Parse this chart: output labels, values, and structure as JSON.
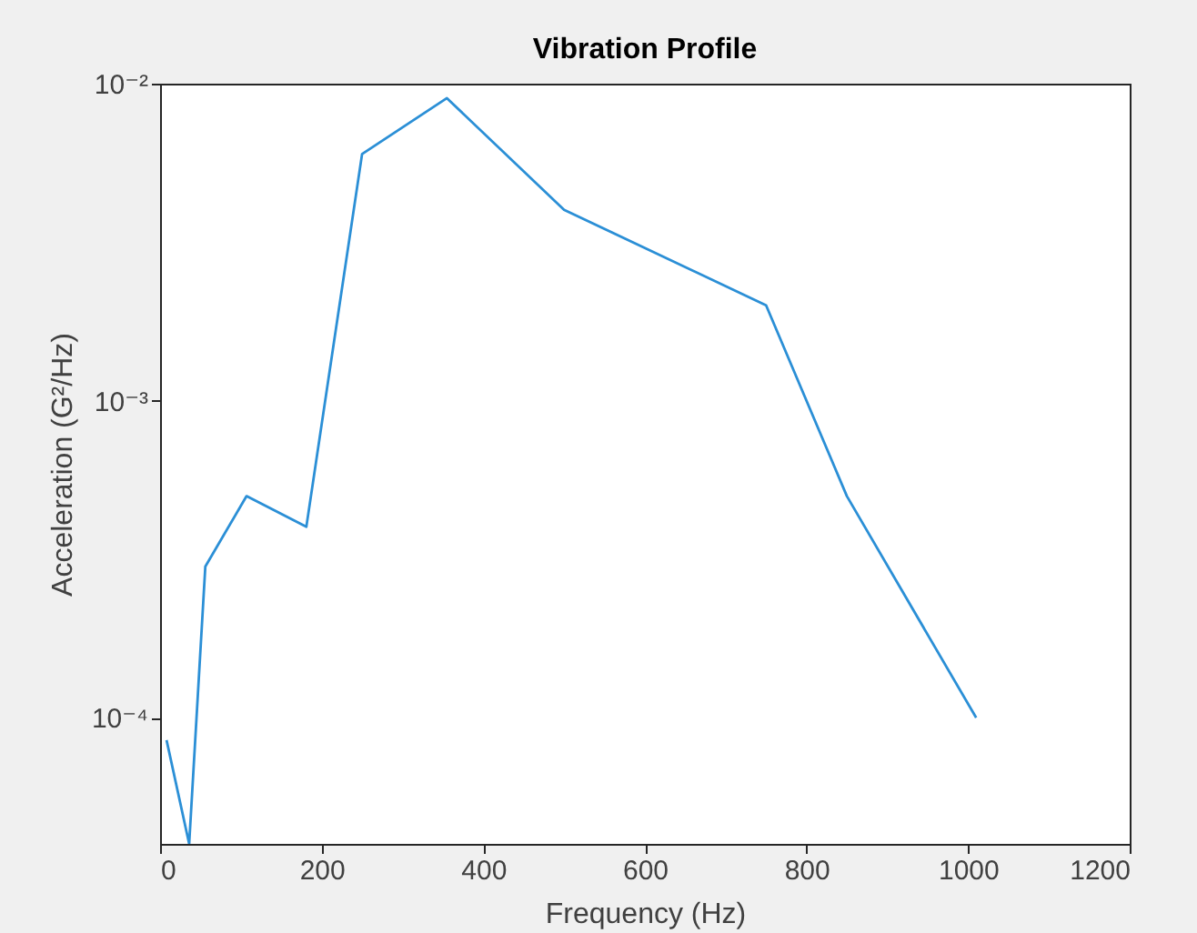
{
  "chart_data": {
    "type": "line",
    "title": "Vibration Profile",
    "xlabel": "Frequency (Hz)",
    "ylabel": "Acceleration (G²/Hz)",
    "x": [
      8,
      36,
      56,
      107,
      181,
      250,
      355,
      500,
      750,
      850,
      1010
    ],
    "series": [
      {
        "color": "#2b8fd6",
        "values": [
          8.5e-05,
          4e-05,
          0.0003,
          0.0005,
          0.0004,
          0.006,
          0.009,
          0.004,
          0.002,
          0.0005,
          0.0001
        ]
      }
    ],
    "xlim": [
      0,
      1200
    ],
    "xticks": [
      0,
      200,
      400,
      600,
      800,
      1000,
      1200
    ],
    "ylim": [
      4e-05,
      0.01
    ],
    "yticks": [
      {
        "value": 0.0001,
        "label": "10⁻⁴"
      },
      {
        "value": 0.001,
        "label": "10⁻³"
      },
      {
        "value": 0.01,
        "label": "10⁻²"
      }
    ],
    "log": "y",
    "grid": false
  }
}
